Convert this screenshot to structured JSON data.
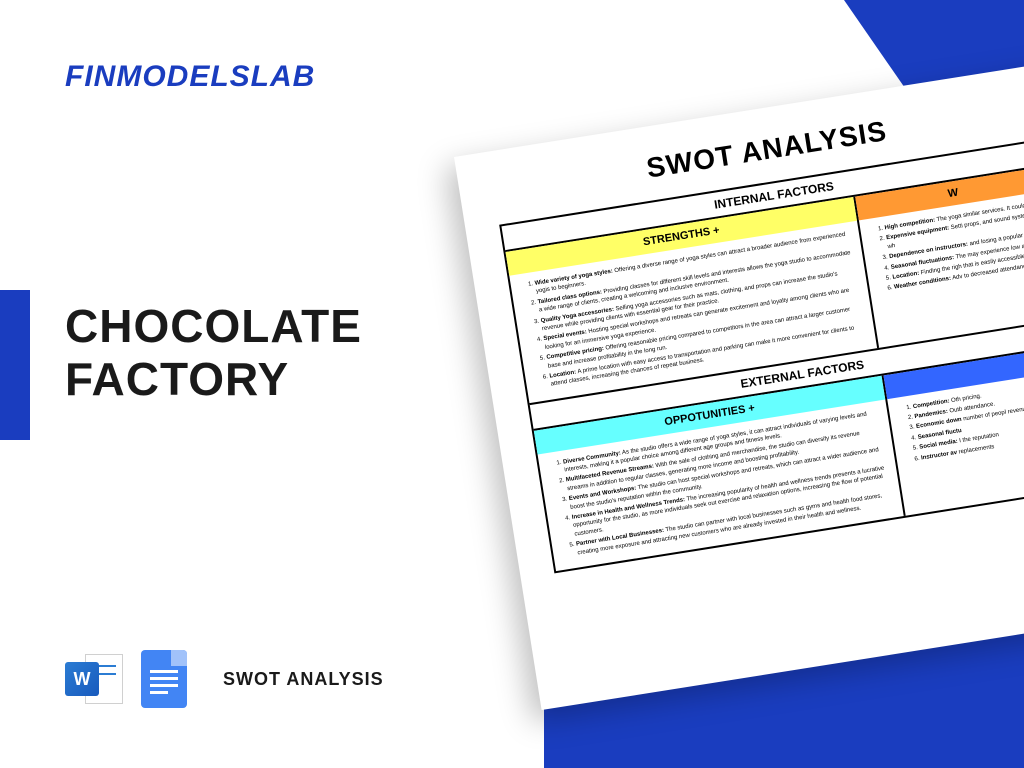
{
  "brand": "FINMODELSLAB",
  "title_line1": "CHOCOLATE",
  "title_line2": "FACTORY",
  "subtitle": "SWOT ANALYSIS",
  "word_letter": "W",
  "doc": {
    "title": "SWOT ANALYSIS",
    "internal_label": "INTERNAL FACTORS",
    "external_label": "EXTERNAL FACTORS",
    "strengths": {
      "label": "STRENGTHS +",
      "color": "#ffff66",
      "items": [
        {
          "b": "Wide variety of yoga styles:",
          "t": " Offering a diverse range of yoga styles can attract a broader audience from experienced yogis to beginners."
        },
        {
          "b": "Tailored class options:",
          "t": " Providing classes for different skill levels and interests allows the yoga studio to accommodate a wide range of clients, creating a welcoming and inclusive environment."
        },
        {
          "b": "Quality Yoga accessories:",
          "t": " Selling yoga accessories such as mats, clothing, and props can increase the studio's revenue while providing clients with essential gear for their practice."
        },
        {
          "b": "Special events:",
          "t": " Hosting special workshops and retreats can generate excitement and loyalty among clients who are looking for an immersive yoga experience."
        },
        {
          "b": "Competitive pricing:",
          "t": " Offering reasonable pricing compared to competitors in the area can attract a larger customer base and increase profitability in the long run."
        },
        {
          "b": "Location:",
          "t": " A prime location with easy access to transportation and parking can make it more convenient for clients to attend classes, increasing the chances of repeat business."
        }
      ]
    },
    "weaknesses": {
      "label": "W",
      "color": "#ff9933",
      "items": [
        {
          "b": "High competition:",
          "t": " The yoga similar services. It could be a"
        },
        {
          "b": "Expensive equipment:",
          "t": " Setti props, and sound systems, wh"
        },
        {
          "b": "Dependence on instructors:",
          "t": " and losing a popular instruct"
        },
        {
          "b": "Seasonal fluctuations:",
          "t": " The may experience low attend"
        },
        {
          "b": "Location:",
          "t": " Finding the righ that is easily accessible to"
        },
        {
          "b": "Weather conditions:",
          "t": " Adv to decreased attendance."
        }
      ]
    },
    "opportunities": {
      "label": "OPPOTUNITIES +",
      "color": "#66ffff",
      "items": [
        {
          "b": "Diverse Community:",
          "t": " As the studio offers a wide range of yoga styles, it can attract individuals of varying levels and interests, making it a popular choice among different age groups and fitness levels."
        },
        {
          "b": "Multifaceted Revenue Streams:",
          "t": " With the sale of clothing and merchandise, the studio can diversify its revenue streams in addition to regular classes, generating more income and boosting profitability."
        },
        {
          "b": "Events and Workshops:",
          "t": " The studio can host special workshops and retreats, which can attract a wider audience and boost the studio's reputation within the community."
        },
        {
          "b": "Increase in Health and Wellness Trends:",
          "t": " The increasing popularity of health and wellness trends presents a lucrative opportunity for the studio, as more individuals seek out exercise and relaxation options, increasing the flow of potential customers."
        },
        {
          "b": "Partner with Local Businesses:",
          "t": " The studio can partner with local businesses such as gyms and health food stores, creating more exposure and attracting new customers who are already invested in their health and wellness."
        }
      ]
    },
    "threats": {
      "label": "",
      "color": "#3366ff",
      "items": [
        {
          "b": "Competition:",
          "t": " Oth pricing."
        },
        {
          "b": "Pandemics:",
          "t": " Outb attendance."
        },
        {
          "b": "Economic down",
          "t": " number of peopl revenue for the"
        },
        {
          "b": "Seasonal fluctu",
          "t": ""
        },
        {
          "b": "Social media:",
          "t": " I the reputation"
        },
        {
          "b": "Instructor av",
          "t": " replacements"
        }
      ]
    }
  }
}
